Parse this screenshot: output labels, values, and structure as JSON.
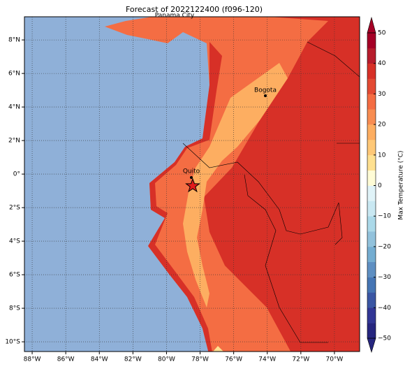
{
  "chart_data": {
    "type": "map",
    "title": "Forecast of 2022122400 (f096-120)",
    "xlim": [
      -88.46,
      -68.5
    ],
    "ylim": [
      -10.58,
      9.38
    ],
    "xticks": [
      {
        "value": -88,
        "label": "88°W"
      },
      {
        "value": -86,
        "label": "86°W"
      },
      {
        "value": -84,
        "label": "84°W"
      },
      {
        "value": -82,
        "label": "82°W"
      },
      {
        "value": -80,
        "label": "80°W"
      },
      {
        "value": -78,
        "label": "78°W"
      },
      {
        "value": -76,
        "label": "76°W"
      },
      {
        "value": -74,
        "label": "74°W"
      },
      {
        "value": -72,
        "label": "72°W"
      },
      {
        "value": -70,
        "label": "70°W"
      }
    ],
    "yticks": [
      {
        "value": 8,
        "label": "8°N"
      },
      {
        "value": 6,
        "label": "6°N"
      },
      {
        "value": 4,
        "label": "4°N"
      },
      {
        "value": 2,
        "label": "2°N"
      },
      {
        "value": 0,
        "label": "0°"
      },
      {
        "value": -2,
        "label": "2°S"
      },
      {
        "value": -4,
        "label": "4°S"
      },
      {
        "value": -6,
        "label": "6°S"
      },
      {
        "value": -8,
        "label": "8°S"
      },
      {
        "value": -10,
        "label": "10°S"
      }
    ],
    "grid": true,
    "places": [
      "Panama City",
      "Bogota",
      "Quito"
    ],
    "colorbar": {
      "label": "Max Temperature (°C)",
      "lim": [
        -50,
        50
      ],
      "ticks": [
        {
          "value": -50,
          "label": "−50"
        },
        {
          "value": -40,
          "label": "−40"
        },
        {
          "value": -30,
          "label": "−30"
        },
        {
          "value": -20,
          "label": "−20"
        },
        {
          "value": -10,
          "label": "−10"
        },
        0,
        10,
        20,
        30,
        40,
        50
      ],
      "colors": [
        "#26267f",
        "#313695",
        "#3a56a4",
        "#4575b4",
        "#5e8fc2",
        "#74add1",
        "#92c2dc",
        "#abd9e9",
        "#c9e8f2",
        "#e0f3f8",
        "#fffcd6",
        "#fee090",
        "#fec877",
        "#fdae61",
        "#f88d52",
        "#f46d43",
        "#e34a33",
        "#d73027",
        "#b71c2c",
        "#a50026"
      ]
    }
  }
}
